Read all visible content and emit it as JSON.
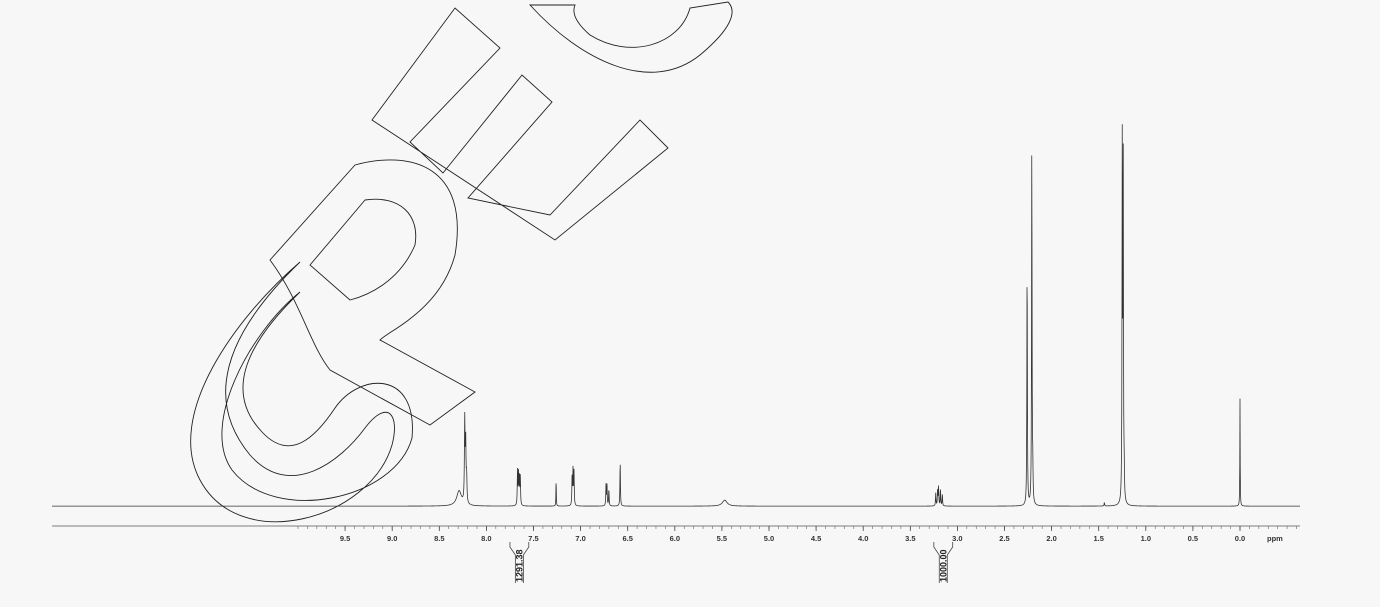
{
  "chart_data": {
    "type": "line",
    "title": "",
    "xlabel": "ppm",
    "ylabel": "",
    "xlim": [
      10.0,
      -0.5
    ],
    "x_reversed": true,
    "ylim": [
      0,
      1.0
    ],
    "grid": false,
    "ticks": [
      "9.5",
      "9.0",
      "8.5",
      "8.0",
      "7.5",
      "7.0",
      "6.5",
      "6.0",
      "5.5",
      "5.0",
      "4.5",
      "4.0",
      "3.5",
      "3.0",
      "2.5",
      "2.0",
      "1.5",
      "1.0",
      "0.5",
      "0.0"
    ],
    "axis_unit": "ppm",
    "peaks": [
      {
        "ppm": 8.29,
        "height": 0.035,
        "width": 0.03
      },
      {
        "ppm": 8.23,
        "height": 0.19,
        "width": 0.004
      },
      {
        "ppm": 8.22,
        "height": 0.14,
        "width": 0.004
      },
      {
        "ppm": 8.21,
        "height": 0.06,
        "width": 0.004
      },
      {
        "ppm": 7.67,
        "height": 0.08,
        "width": 0.003
      },
      {
        "ppm": 7.66,
        "height": 0.077,
        "width": 0.003
      },
      {
        "ppm": 7.65,
        "height": 0.073,
        "width": 0.003
      },
      {
        "ppm": 7.64,
        "height": 0.068,
        "width": 0.003
      },
      {
        "ppm": 7.26,
        "height": 0.07,
        "width": 0.002
      },
      {
        "ppm": 7.09,
        "height": 0.075,
        "width": 0.003
      },
      {
        "ppm": 7.08,
        "height": 0.085,
        "width": 0.003
      },
      {
        "ppm": 7.07,
        "height": 0.078,
        "width": 0.003
      },
      {
        "ppm": 6.73,
        "height": 0.05,
        "width": 0.003
      },
      {
        "ppm": 6.72,
        "height": 0.048,
        "width": 0.003
      },
      {
        "ppm": 6.7,
        "height": 0.04,
        "width": 0.003
      },
      {
        "ppm": 6.58,
        "height": 0.105,
        "width": 0.003
      },
      {
        "ppm": 5.47,
        "height": 0.014,
        "width": 0.03
      },
      {
        "ppm": 3.23,
        "height": 0.03,
        "width": 0.003
      },
      {
        "ppm": 3.21,
        "height": 0.04,
        "width": 0.003
      },
      {
        "ppm": 3.2,
        "height": 0.045,
        "width": 0.003
      },
      {
        "ppm": 3.18,
        "height": 0.038,
        "width": 0.003
      },
      {
        "ppm": 3.16,
        "height": 0.028,
        "width": 0.003
      },
      {
        "ppm": 2.26,
        "height": 0.58,
        "width": 0.003
      },
      {
        "ppm": 2.21,
        "height": 0.855,
        "width": 0.003
      },
      {
        "ppm": 2.2,
        "height": 0.07,
        "width": 0.003
      },
      {
        "ppm": 1.44,
        "height": 0.008,
        "width": 0.003
      },
      {
        "ppm": 1.25,
        "height": 0.82,
        "width": 0.003
      },
      {
        "ppm": 1.24,
        "height": 0.81,
        "width": 0.003
      },
      {
        "ppm": 1.23,
        "height": 0.06,
        "width": 0.003
      },
      {
        "ppm": 0.0,
        "height": 0.25,
        "width": 0.002
      }
    ],
    "integrals": [
      {
        "label": "1291.38",
        "from": 7.75,
        "to": 7.55
      },
      {
        "label": "1000.00",
        "from": 3.25,
        "to": 3.05
      }
    ],
    "watermark": "SPEC"
  }
}
